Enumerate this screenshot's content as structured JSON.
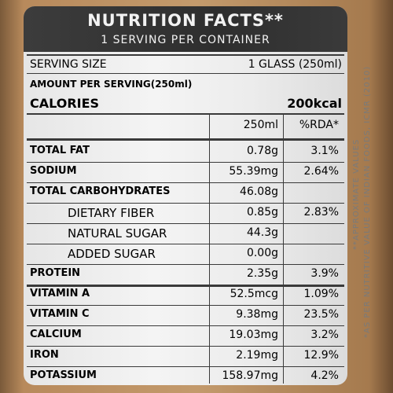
{
  "header": {
    "title": "NUTRITION FACTS**",
    "subtitle": "1 SERVING PER CONTAINER"
  },
  "serving": {
    "label": "SERVING SIZE",
    "value": "1 GLASS (250ml)"
  },
  "amount_per_serving": "AMOUNT PER SERVING(250ml)",
  "calories": {
    "label": "CALORIES",
    "value": "200kcal"
  },
  "columns": {
    "amount": "250ml",
    "rda": "%RDA*"
  },
  "nutrients": [
    {
      "name": "TOTAL FAT",
      "amount": "0.78g",
      "rda": "3.1%"
    },
    {
      "name": "SODIUM",
      "amount": "55.39mg",
      "rda": "2.64%"
    },
    {
      "name": "TOTAL CARBOHYDRATES",
      "amount": "46.08g",
      "rda": ""
    },
    {
      "name": "DIETARY FIBER",
      "amount": "0.85g",
      "rda": "2.83%"
    },
    {
      "name": "NATURAL SUGAR",
      "amount": "44.3g",
      "rda": ""
    },
    {
      "name": "ADDED SUGAR",
      "amount": "0.00g",
      "rda": ""
    },
    {
      "name": "PROTEIN",
      "amount": "2.35g",
      "rda": "3.9%"
    },
    {
      "name": "VITAMIN A",
      "amount": "52.5mcg",
      "rda": "1.09%"
    },
    {
      "name": "VITAMIN C",
      "amount": "9.38mg",
      "rda": "23.5%"
    },
    {
      "name": "CALCIUM",
      "amount": "19.03mg",
      "rda": "3.2%"
    },
    {
      "name": "IRON",
      "amount": "2.19mg",
      "rda": "12.9%"
    },
    {
      "name": "POTASSIUM",
      "amount": "158.97mg",
      "rda": "4.2%"
    }
  ],
  "side_notes": {
    "approx": "**APPROXIMATE VALUES",
    "source": "*AS PER NUTRITIVE VALUE OF INDIAN FOODS, ICMR (2010)"
  }
}
